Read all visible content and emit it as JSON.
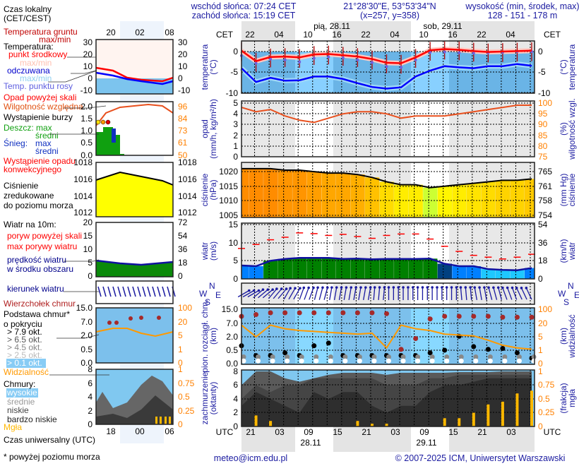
{
  "header": {
    "sunrise": "wschód słońca: 07:24 CET",
    "sunset": "zachód słońca: 15:19 CET",
    "coords": "21°28'30\"E, 53°53'34\"N",
    "grid": "(x=257,  y=358)",
    "elevation_title": "wysokość (min, środek, max)",
    "elevation_values": "128 - 151 - 178 m"
  },
  "dates": {
    "day1": "pią, 28.11",
    "day2": "sob, 29.11",
    "utc1": "28.11",
    "utc2": "29.11"
  },
  "time_axis": {
    "cet_label": "CET",
    "utc_label": "UTC",
    "cet_ticks": [
      "22",
      "04",
      "10",
      "16",
      "22",
      "04",
      "10",
      "16",
      "22",
      "04"
    ],
    "utc_ticks": [
      "21",
      "03",
      "09",
      "15",
      "21",
      "03",
      "09",
      "15",
      "21",
      "03"
    ]
  },
  "panels": {
    "temperature": {
      "left_title": [
        "temperatura",
        "(°C)"
      ],
      "right_title": [
        "(°C)",
        "temperatura"
      ],
      "left_ticks": [
        "0",
        "-5",
        "-10"
      ],
      "right_ticks": [
        "0",
        "-5",
        "-10"
      ]
    },
    "precipitation": {
      "left_title": [
        "opad",
        "(mm/h, kg/m²/h)"
      ],
      "right_title": [
        "(%)",
        "wilgotność wzgl."
      ],
      "left_ticks": [
        "5",
        "4",
        "3",
        "2",
        "1",
        "0"
      ],
      "right_ticks": [
        "100",
        "95",
        "90",
        "85",
        "80",
        "75"
      ]
    },
    "pressure": {
      "left_title": [
        "ciśnienie",
        "(hPa)"
      ],
      "right_title": [
        "(mm Hg)",
        "ciśnienie"
      ],
      "left_ticks": [
        "1020",
        "1015",
        "1010",
        "1005"
      ],
      "right_ticks": [
        "765",
        "761",
        "758",
        "754"
      ]
    },
    "wind": {
      "left_title": [
        "wiatr",
        "(m/s)"
      ],
      "right_title": [
        "(km/h)",
        "wiatr"
      ],
      "left_ticks": [
        "15",
        "10",
        "5",
        "0"
      ],
      "right_ticks": [
        "54",
        "36",
        "18",
        "0"
      ]
    },
    "cloud_base": {
      "left_title": [
        "pion. rozciągł. chm.",
        "(km)"
      ],
      "right_title": [
        "(km)",
        "widzialność"
      ],
      "left_ticks": [
        "15.0",
        "7.0",
        "2.0",
        "0.5",
        "0.0"
      ],
      "right_ticks": [
        "100",
        "20",
        "5",
        "1",
        "0"
      ]
    },
    "clouds": {
      "left_title": [
        "zachmurzenie",
        "(oktanty)"
      ],
      "right_title": [
        "(frakcja)",
        "mgła"
      ],
      "left_ticks": [
        "8",
        "6",
        "4",
        "2",
        "0"
      ],
      "right_ticks": [
        "1",
        "0.75",
        "0.5",
        "0.25",
        "0"
      ]
    }
  },
  "compass": {
    "n": "N",
    "w": "W",
    "s": "S",
    "e": "E"
  },
  "legend": {
    "local_time": [
      "Czas lokalny",
      "(CET/CEST)"
    ],
    "local_ticks": [
      "20",
      "02",
      "08"
    ],
    "utc_ticks": [
      "18",
      "00",
      "06"
    ],
    "utc_time": "Czas uniwersalny (UTC)",
    "footnote": "* powyżej poziomu morza",
    "labels": [
      "Temperatura gruntu",
      "max/min",
      "Temperatura:",
      "punkt środkowy",
      "max/min",
      "odczuwana",
      "max/min",
      "Temp. punktu rosy",
      "Opad powyżej skali",
      "Wilgotność względna",
      "Wystąpienie burzy",
      "Deszcz: max",
      "średni",
      "Śnieg:",
      "max",
      "średni",
      "Wystąpienie opadu",
      "konwekcyjnego",
      "Ciśnienie",
      "zredukowane",
      "do poziomu morza",
      "Wiatr na 10m:",
      "poryw powyżej skali",
      "max porywy wiatru",
      "prędkość wiatru",
      "w środku obszaru",
      "kierunek wiatru",
      "Wierzchołek chmur",
      "Podstawa chmur*",
      "o pokryciu",
      "> 7.9 okt.",
      "> 6.5 okt.",
      "> 4.5 okt.",
      "> 2.5 okt.",
      "> 0.1 okt.",
      "Widzialność",
      "Chmury:",
      "wysokie",
      "średnie",
      "niskie",
      "bardzo niskie",
      "Mgła"
    ],
    "axes": {
      "temperature": {
        "left": [
          "30",
          "20",
          "10",
          "0",
          "-10"
        ],
        "right": [
          "30",
          "20",
          "10",
          "0",
          "-10"
        ]
      },
      "precipitation": {
        "left": [
          "2.0",
          "1.5",
          "1.0",
          "0.5",
          "0.0"
        ],
        "right": [
          "96",
          "84",
          "73",
          "61",
          "50"
        ]
      },
      "pressure": {
        "left": [
          "1018",
          "1016",
          "1014",
          "1012"
        ],
        "right": [
          "1018",
          "1016",
          "1014",
          "1012"
        ]
      },
      "wind": {
        "left": [
          "20",
          "15",
          "10",
          "5",
          "0"
        ],
        "right": [
          "72",
          "54",
          "36",
          "18",
          "0"
        ]
      },
      "cloud_base": {
        "left": [
          "15.0",
          "7.0",
          "2.0",
          "0.5",
          "0.0"
        ],
        "right": [
          "100",
          "20",
          "5",
          "1",
          "0"
        ]
      },
      "clouds": {
        "left": [
          "8",
          "6",
          "4",
          "2",
          "0"
        ],
        "right": [
          "1",
          "0.75",
          "0.5",
          "0.25",
          "0"
        ]
      }
    }
  },
  "footer": {
    "email": "meteo@icm.edu.pl",
    "copyright": "© 2007-2025 ICM, Uniwersytet Warszawski"
  },
  "colors": {
    "temperature": "#ff0000",
    "feels_like": "#0000ff",
    "dew_point": "#7060e0",
    "humidity": "#e8501e",
    "pressure_line": "#000000",
    "gust": "#ff0000",
    "visibility": "#ff9900",
    "fog": "#ffb800",
    "cloud_top": "#a52a2a",
    "text_blue": "#1a1aa0"
  },
  "chart_data": {
    "type": "line",
    "x_label": "UTC",
    "x_utc": [
      "27.11 19",
      "27.11 22",
      "28.11 01",
      "28.11 04",
      "28.11 07",
      "28.11 10",
      "28.11 13",
      "28.11 16",
      "28.11 19",
      "28.11 22",
      "29.11 01",
      "29.11 04",
      "29.11 07",
      "29.11 10",
      "29.11 13",
      "29.11 16",
      "29.11 19",
      "29.11 22",
      "30.11 01",
      "30.11 04",
      "30.11 07"
    ],
    "series": {
      "temperature_c": [
        0.2,
        -2.3,
        -1.3,
        -1.2,
        -1.4,
        -0.7,
        -0.6,
        -0.9,
        -1.2,
        -1.8,
        -2.7,
        -2.8,
        -1.4,
        0.3,
        0.6,
        0.4,
        0.1,
        -0.1,
        0,
        0.1,
        0.2
      ],
      "dew_point_c": [
        -1,
        -2.8,
        -1.8,
        -2,
        -2.5,
        -1.6,
        -1.3,
        -1.5,
        -2,
        -2.6,
        -3.6,
        -3.8,
        -2,
        -0.2,
        -0.1,
        -0.3,
        -0.4,
        -0.3,
        -0.2,
        0,
        0
      ],
      "feels_like_c": [
        -4,
        -7.3,
        -6.3,
        -7,
        -6.9,
        -6,
        -6,
        -6.6,
        -7.6,
        -8.5,
        -8.9,
        -8.6,
        -6,
        -4.6,
        -3.5,
        -3.8,
        -4,
        -3.5,
        -3.5,
        -3,
        -3.4
      ],
      "precipitation_mm_h": [
        0,
        0,
        0,
        0,
        0,
        0,
        0,
        0,
        0,
        0,
        0,
        0,
        0,
        0,
        0,
        0,
        0,
        0,
        0,
        0,
        0
      ],
      "humidity_pct": [
        98,
        96,
        97,
        94,
        92,
        91,
        93,
        95,
        96,
        96,
        95,
        93,
        94,
        94,
        94,
        95,
        96,
        97,
        98,
        99,
        99
      ],
      "pressure_hpa": [
        1021,
        1021,
        1021,
        1020.5,
        1020.5,
        1020,
        1019.5,
        1019.5,
        1019,
        1018,
        1016.5,
        1015.5,
        1015.5,
        1014.5,
        1015,
        1015.5,
        1016,
        1016.5,
        1017,
        1017,
        1017.5
      ],
      "wind_speed_ms": [
        3.7,
        3.5,
        5,
        5.5,
        5.8,
        5.8,
        5.8,
        5.5,
        5.6,
        5.4,
        5.5,
        5.5,
        5.5,
        5.6,
        4.2,
        3.5,
        3.5,
        2.7,
        2.5,
        2.4,
        3
      ],
      "wind_gust_ms": [
        8.4,
        9.5,
        10.8,
        11.5,
        12.7,
        12.5,
        12,
        12.3,
        11.7,
        11.2,
        12,
        12.4,
        12.4,
        11,
        9,
        7.6,
        6.5,
        6,
        5.5,
        6,
        6.8
      ],
      "wind_direction_deg": [
        240,
        230,
        220,
        210,
        200,
        195,
        190,
        190,
        190,
        185,
        180,
        180,
        180,
        180,
        180,
        175,
        170,
        165,
        160,
        155,
        150
      ],
      "cloud_top_km": [
        11,
        12,
        13,
        13,
        13,
        13,
        13,
        13,
        13,
        13,
        12.5,
        0.6,
        1.8,
        9.5,
        11,
        11,
        11,
        11,
        10.5,
        10.5,
        10.5
      ],
      "cloud_base_km": [
        1,
        0.3,
        0.3,
        0.4,
        0.3,
        1,
        1.3,
        0.3,
        0.3,
        0.3,
        0.3,
        0.3,
        0.3,
        0.4,
        0.5,
        2.2,
        0.9,
        0.6,
        0.7,
        0.4,
        0.2
      ],
      "visibility_km": [
        18,
        5,
        18,
        14,
        12,
        11,
        10,
        9,
        8,
        9,
        1.7,
        18,
        14,
        12,
        8,
        7,
        6,
        4,
        2.5,
        1.7,
        1.3
      ],
      "clouds_srednie_okt": [
        6,
        8,
        8,
        7,
        6.5,
        7,
        7.5,
        7.8,
        7.8,
        7.8,
        7.5,
        7.8,
        7.8,
        7.8,
        7.8,
        7.9,
        7.9,
        7.9,
        8,
        8,
        8
      ],
      "clouds_niskie_okt": [
        4,
        6,
        5,
        6,
        6,
        7,
        7,
        7,
        7,
        7,
        6,
        6,
        6,
        7,
        7,
        7.5,
        7.5,
        7.5,
        7.5,
        7.5,
        7.5
      ],
      "clouds_bardzo_niskie_okt": [
        3,
        5,
        4,
        3,
        2,
        5,
        4,
        5,
        5,
        3,
        2,
        3,
        3,
        5,
        6,
        6,
        6.5,
        7,
        7,
        7,
        7
      ],
      "fog_fraction": [
        0,
        0.2,
        0.1,
        0,
        0,
        0,
        0,
        0,
        0.1,
        0.05,
        0.05,
        0,
        0,
        0,
        0.15,
        0.15,
        0.25,
        0.4,
        0.45,
        0.6,
        0.65
      ]
    }
  }
}
